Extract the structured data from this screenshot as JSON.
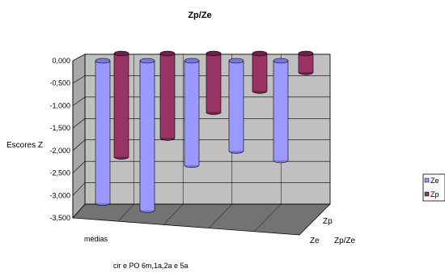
{
  "chart_data": {
    "type": "bar",
    "title": "Zp/Ze",
    "ylabel": "Escores Z",
    "xlabel": "cir e  PO 6m,1a,2a e 5a",
    "depth_axis_label": "Zp/Ze",
    "categories": [
      "médias",
      "",
      "",
      "",
      ""
    ],
    "yticks": [
      "0,000",
      "-0,500",
      "-1,000",
      "-1,500",
      "-2,000",
      "-2,500",
      "-3,000",
      "-3,500"
    ],
    "ylim": [
      -3.5,
      0
    ],
    "grid": true,
    "legend_position": "right",
    "series": [
      {
        "name": "Ze",
        "depth_label": "Ze",
        "color": "#9999ff",
        "values": [
          -3.0,
          -3.15,
          -2.2,
          -1.9,
          -2.1
        ]
      },
      {
        "name": "Zp",
        "depth_label": "Zp",
        "color": "#993366",
        "values": [
          -2.2,
          -1.8,
          -1.25,
          -0.8,
          -0.4
        ]
      }
    ]
  }
}
